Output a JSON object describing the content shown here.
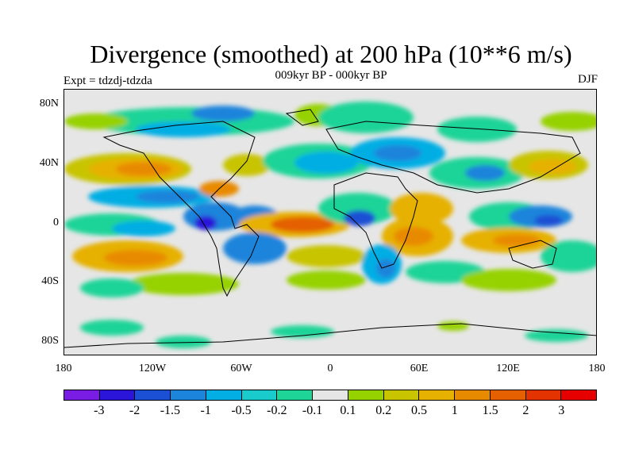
{
  "title": "Divergence (smoothed) at 200 hPa (10**6 m/s)",
  "subtitle": "009kyr BP - 000kyr BP",
  "left_label": "Expt = tdzdj-tdzda",
  "right_label": "DJF",
  "map": {
    "lat_labels": [
      "80N",
      "40N",
      "0",
      "40S",
      "80S"
    ],
    "lon_labels": [
      "180",
      "120W",
      "60W",
      "0",
      "60E",
      "120E",
      "180"
    ],
    "projection": "cylindrical equidistant",
    "lon_range": [
      -180,
      180
    ],
    "lat_range": [
      -90,
      90
    ]
  },
  "colorbar": {
    "colors": [
      "#7a1de4",
      "#2b15d9",
      "#1b4fd4",
      "#1d84db",
      "#03aee4",
      "#1acbcb",
      "#1ed497",
      "#e6e6e6",
      "#96d200",
      "#c8c400",
      "#e6b100",
      "#e88a00",
      "#e46000",
      "#e33300",
      "#e60000"
    ],
    "labels": [
      "-3",
      "-2",
      "-1.5",
      "-1",
      "-0.5",
      "-0.2",
      "-0.1",
      "0.1",
      "0.2",
      "0.5",
      "1",
      "1.5",
      "2",
      "3"
    ]
  }
}
